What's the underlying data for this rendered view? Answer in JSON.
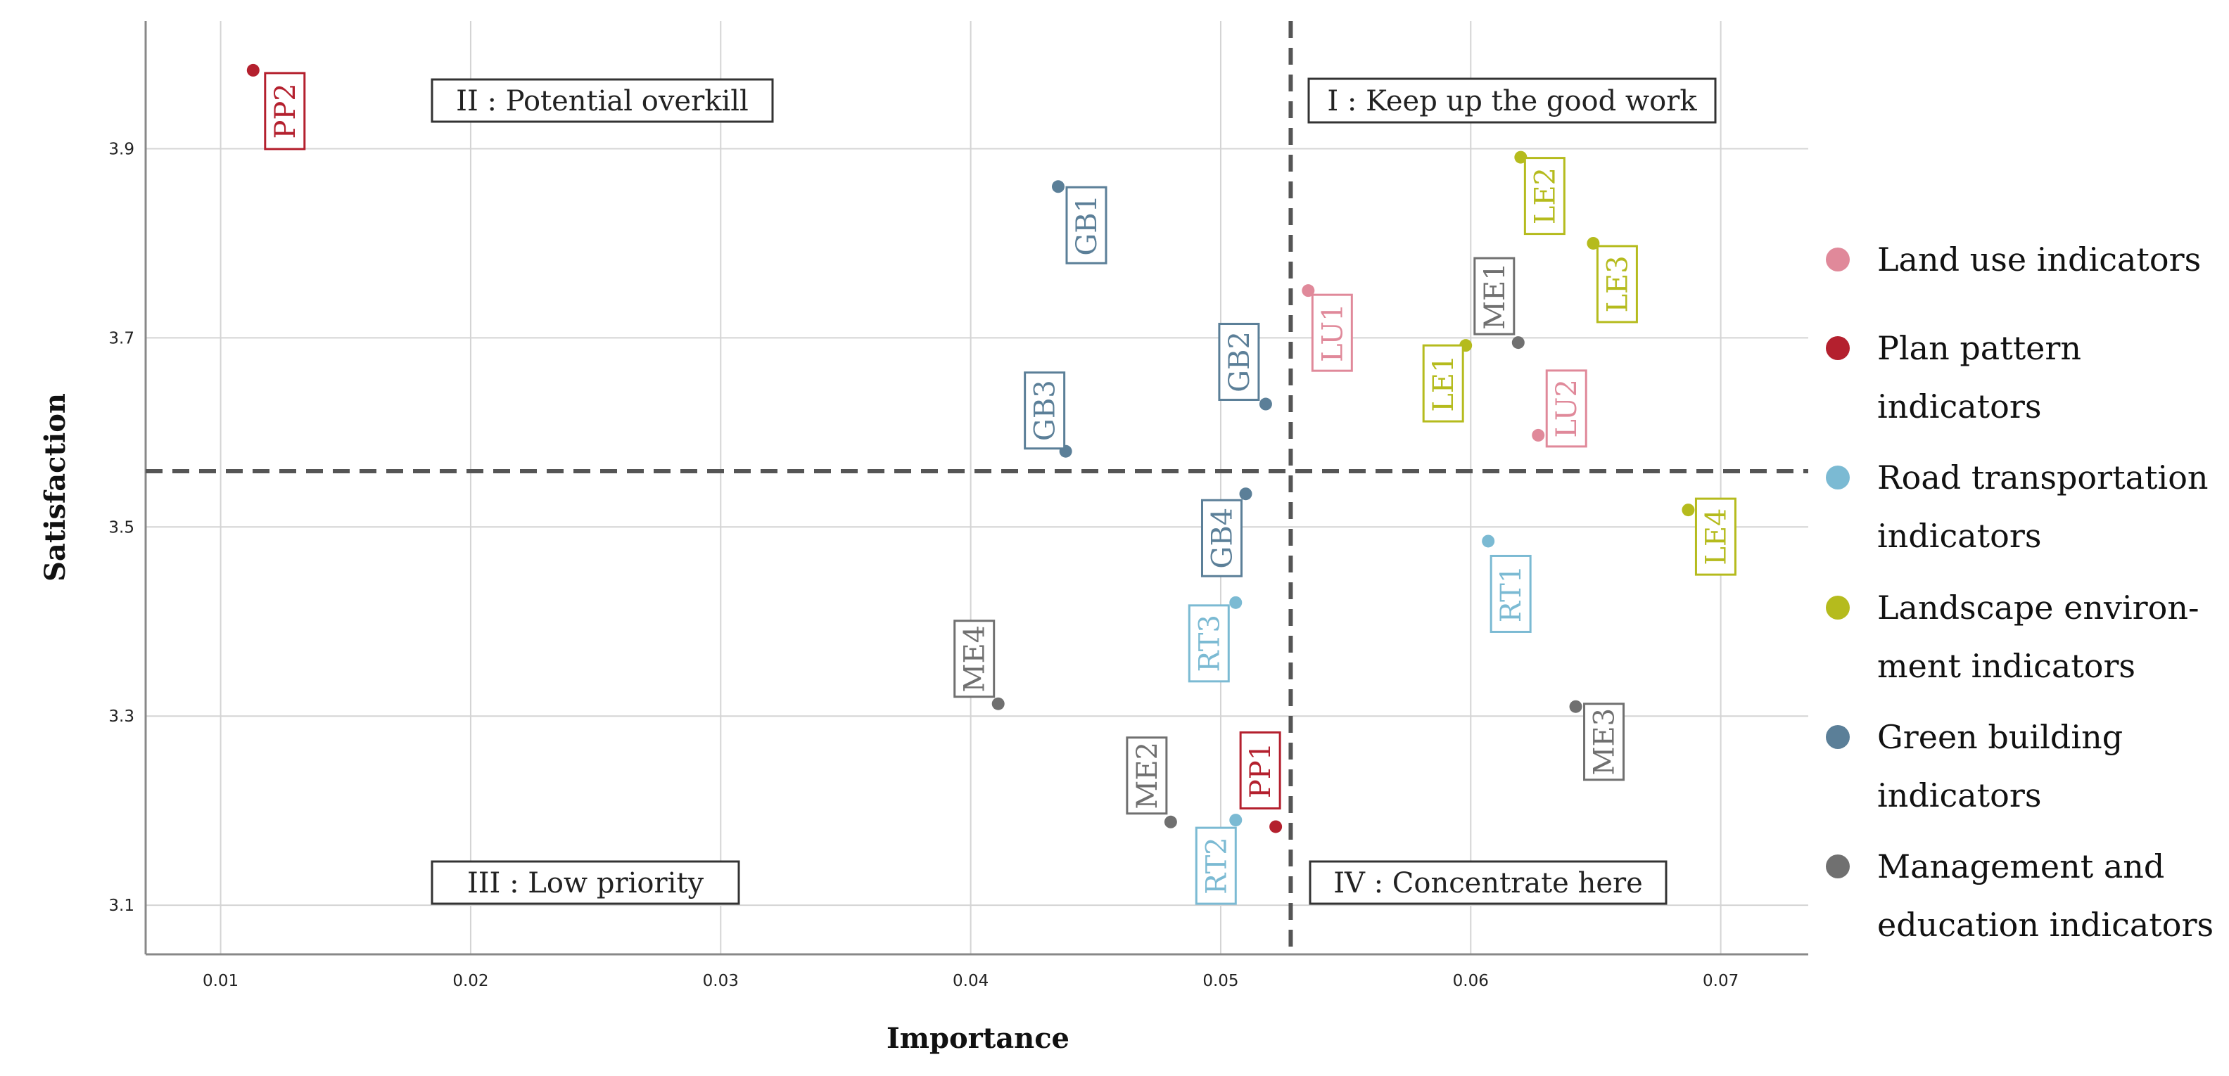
{
  "chart_data": {
    "type": "scatter",
    "title": "",
    "xlabel": "Importance",
    "ylabel": "Satisfaction",
    "xlim": [
      0.007,
      0.0735
    ],
    "ylim": [
      3.048,
      4.035
    ],
    "xticks": [
      "0.01",
      "0.02",
      "0.03",
      "0.04",
      "0.05",
      "0.06",
      "0.07"
    ],
    "yticks": [
      "3.1",
      "3.3",
      "3.5",
      "3.7",
      "3.9"
    ],
    "grid": true,
    "reference_lines": {
      "x": 0.0528,
      "y": 3.559,
      "style": "dashed"
    },
    "quadrants": [
      {
        "id": "q1",
        "label": "I : Keep up the good work",
        "position": "top-right"
      },
      {
        "id": "q2",
        "label": "II : Potential overkill",
        "position": "top-left"
      },
      {
        "id": "q3",
        "label": "III : Low priority",
        "position": "bottom-left"
      },
      {
        "id": "q4",
        "label": "IV : Concentrate here",
        "position": "bottom-right"
      }
    ],
    "series": [
      {
        "name": "Land use indicators",
        "color": "#e0899a",
        "points": [
          {
            "label": "LU1",
            "x": 0.0535,
            "y": 3.75
          },
          {
            "label": "LU2",
            "x": 0.0627,
            "y": 3.597
          }
        ]
      },
      {
        "name": "Plan pattern indicators",
        "color": "#b4202e",
        "points": [
          {
            "label": "PP2",
            "x": 0.0113,
            "y": 3.983
          },
          {
            "label": "PP1",
            "x": 0.0522,
            "y": 3.183
          }
        ]
      },
      {
        "name": "Road transportation indicators",
        "color": "#7bbad3",
        "points": [
          {
            "label": "RT1",
            "x": 0.0607,
            "y": 3.485
          },
          {
            "label": "RT2",
            "x": 0.0506,
            "y": 3.19
          },
          {
            "label": "RT3",
            "x": 0.0506,
            "y": 3.42
          }
        ]
      },
      {
        "name": "Landscape environment indicators",
        "color": "#b5bb1d",
        "points": [
          {
            "label": "LE1",
            "x": 0.0598,
            "y": 3.692
          },
          {
            "label": "LE2",
            "x": 0.062,
            "y": 3.891
          },
          {
            "label": "LE3",
            "x": 0.0649,
            "y": 3.8
          },
          {
            "label": "LE4",
            "x": 0.0687,
            "y": 3.518
          }
        ]
      },
      {
        "name": "Green building indicators",
        "color": "#5b7f98",
        "points": [
          {
            "label": "GB1",
            "x": 0.0435,
            "y": 3.86
          },
          {
            "label": "GB2",
            "x": 0.0518,
            "y": 3.63
          },
          {
            "label": "GB3",
            "x": 0.0438,
            "y": 3.58
          },
          {
            "label": "GB4",
            "x": 0.051,
            "y": 3.535
          }
        ]
      },
      {
        "name": "Management and education indicators",
        "color": "#707070",
        "points": [
          {
            "label": "ME1",
            "x": 0.0619,
            "y": 3.695
          },
          {
            "label": "ME2",
            "x": 0.048,
            "y": 3.188
          },
          {
            "label": "ME3",
            "x": 0.0642,
            "y": 3.31
          },
          {
            "label": "ME4",
            "x": 0.0411,
            "y": 3.313
          }
        ]
      }
    ],
    "legend": {
      "position": "right",
      "entries": [
        [
          "Land use indicators"
        ],
        [
          "Plan pattern",
          "indicators"
        ],
        [
          "Road transportation",
          "indicators"
        ],
        [
          "Landscape environ-",
          "ment indicators"
        ],
        [
          "Green building",
          "indicators"
        ],
        [
          "Management and",
          "education indicators"
        ]
      ]
    }
  }
}
